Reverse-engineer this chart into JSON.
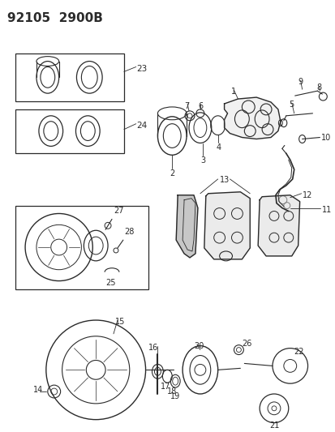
{
  "title": "92105  2900B",
  "bg_color": "#ffffff",
  "fig_width": 4.14,
  "fig_height": 5.33,
  "dpi": 100,
  "line_color": "#2a2a2a",
  "title_fontsize": 11
}
